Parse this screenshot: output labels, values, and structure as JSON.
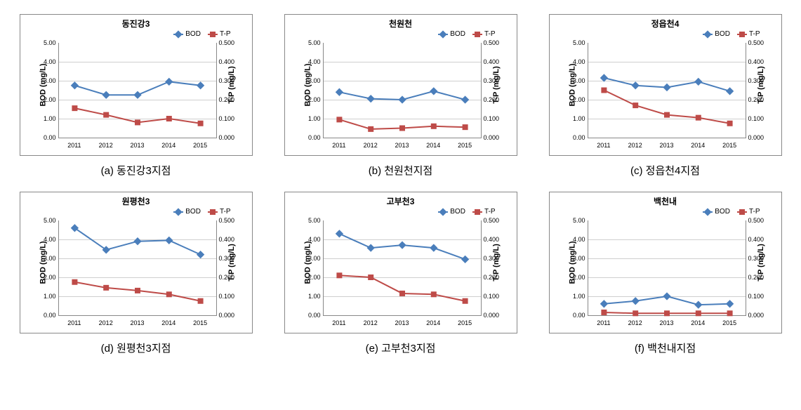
{
  "years": [
    "2011",
    "2012",
    "2013",
    "2014",
    "2015"
  ],
  "bod_axis": {
    "min": 0,
    "max": 5,
    "step": 1,
    "label": "BOD (mg/L)",
    "decimals": 2
  },
  "tp_axis": {
    "min": 0,
    "max": 0.5,
    "step": 0.1,
    "label": "T-P (mg/L)",
    "decimals": 3
  },
  "colors": {
    "bod": "#4a7ebb",
    "tp": "#be4b48",
    "grid": "#cfcfcf",
    "axis": "#888888",
    "bg": "#ffffff"
  },
  "legend": {
    "bod": "BOD",
    "tp": "T-P"
  },
  "marker": {
    "bod_shape": "diamond",
    "tp_shape": "square",
    "size": 8,
    "line_width": 2
  },
  "charts": [
    {
      "id": "a",
      "title": "동진강3",
      "caption": "(a) 동진강3지점",
      "bod": [
        2.75,
        2.25,
        2.25,
        2.95,
        2.75
      ],
      "tp": [
        0.155,
        0.12,
        0.08,
        0.1,
        0.075
      ]
    },
    {
      "id": "b",
      "title": "천원천",
      "caption": "(b) 천원천지점",
      "bod": [
        2.4,
        2.05,
        2.0,
        2.45,
        2.0
      ],
      "tp": [
        0.095,
        0.045,
        0.05,
        0.06,
        0.055
      ]
    },
    {
      "id": "c",
      "title": "정읍천4",
      "caption": "(c) 정읍천4지점",
      "bod": [
        3.15,
        2.75,
        2.65,
        2.95,
        2.45
      ],
      "tp": [
        0.25,
        0.17,
        0.12,
        0.105,
        0.075
      ]
    },
    {
      "id": "d",
      "title": "원평천3",
      "caption": "(d) 원평천3지점",
      "bod": [
        4.6,
        3.45,
        3.9,
        3.95,
        3.2
      ],
      "tp": [
        0.175,
        0.145,
        0.13,
        0.11,
        0.075
      ]
    },
    {
      "id": "e",
      "title": "고부천3",
      "caption": "(e) 고부천3지점",
      "bod": [
        4.3,
        3.55,
        3.7,
        3.55,
        2.95
      ],
      "tp": [
        0.21,
        0.2,
        0.115,
        0.11,
        0.075
      ]
    },
    {
      "id": "f",
      "title": "백천내",
      "caption": "(f) 백천내지점",
      "bod": [
        0.6,
        0.75,
        1.0,
        0.55,
        0.6
      ],
      "tp": [
        0.015,
        0.01,
        0.01,
        0.01,
        0.01
      ]
    }
  ]
}
